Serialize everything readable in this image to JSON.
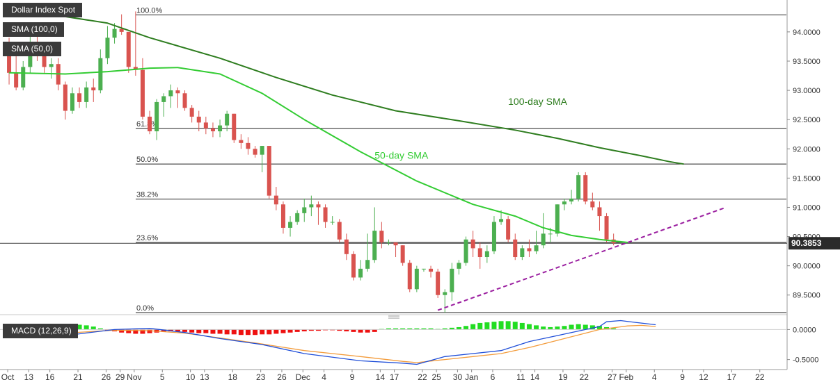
{
  "colors": {
    "bull": "#4caf50",
    "bear": "#d9534f",
    "sma100": "#2e7d1f",
    "sma50": "#33cc33",
    "trendline": "#9b1fa0",
    "macd_line": "#1f4ed8",
    "signal_line": "#f39c3c",
    "hist_pos": "#22dd22",
    "hist_neg": "#ee1111",
    "price_tag": "#2b2b2b"
  },
  "legend": {
    "title": "Dollar Index Spot",
    "sma100": "SMA (100,0)",
    "sma50": "SMA (50,0)",
    "macd": "MACD (12,26,9)"
  },
  "chart_data": [
    {
      "type": "candlestick",
      "title": "Dollar Index Spot",
      "ylim": [
        89.2,
        94.45
      ],
      "y_ticks": [
        "94.0000",
        "93.5000",
        "93.0000",
        "92.5000",
        "92.0000",
        "91.5000",
        "91.0000",
        "90.5000",
        "90.0000",
        "89.5000"
      ],
      "x_ticks": [
        "Oct",
        "13",
        "16",
        "21",
        "26",
        "29",
        "Nov",
        "5",
        "10",
        "13",
        "18",
        "23",
        "26",
        "Dec",
        "4",
        "9",
        "14",
        "17",
        "22",
        "25",
        "30",
        "Jan",
        "6",
        "11",
        "14",
        "19",
        "22",
        "27",
        "Feb",
        "4",
        "9",
        "12",
        "17",
        "22"
      ],
      "candles": [
        [
          93.8,
          93.9,
          93.1,
          93.3
        ],
        [
          93.3,
          93.6,
          93.0,
          93.05
        ],
        [
          93.05,
          93.5,
          93.0,
          93.4
        ],
        [
          93.4,
          94.0,
          93.3,
          93.7
        ],
        [
          93.7,
          93.95,
          93.5,
          93.6
        ],
        [
          93.6,
          93.75,
          93.3,
          93.4
        ],
        [
          93.4,
          93.55,
          93.2,
          93.45
        ],
        [
          93.45,
          93.55,
          93.0,
          93.1
        ],
        [
          93.1,
          93.15,
          92.5,
          92.65
        ],
        [
          92.65,
          93.05,
          92.6,
          92.95
        ],
        [
          92.95,
          93.05,
          92.7,
          92.8
        ],
        [
          92.8,
          93.15,
          92.7,
          93.05
        ],
        [
          93.05,
          93.2,
          92.8,
          93.0
        ],
        [
          93.0,
          93.7,
          92.95,
          93.55
        ],
        [
          93.55,
          94.1,
          93.45,
          93.9
        ],
        [
          93.9,
          94.15,
          93.8,
          94.05
        ],
        [
          94.05,
          94.3,
          93.95,
          94.0
        ],
        [
          94.0,
          94.0,
          93.3,
          93.4
        ],
        [
          93.4,
          94.35,
          93.25,
          93.35
        ],
        [
          93.35,
          93.55,
          92.5,
          92.55
        ],
        [
          92.55,
          92.65,
          92.25,
          92.3
        ],
        [
          92.3,
          92.85,
          92.15,
          92.8
        ],
        [
          92.8,
          92.95,
          92.55,
          92.9
        ],
        [
          92.9,
          93.1,
          92.7,
          93.0
        ],
        [
          93.0,
          93.05,
          92.7,
          92.95
        ],
        [
          92.95,
          93.0,
          92.65,
          92.7
        ],
        [
          92.7,
          92.75,
          92.45,
          92.55
        ],
        [
          92.55,
          92.65,
          92.3,
          92.45
        ],
        [
          92.45,
          92.55,
          92.25,
          92.35
        ],
        [
          92.35,
          92.45,
          92.2,
          92.3
        ],
        [
          92.3,
          92.5,
          92.2,
          92.4
        ],
        [
          92.4,
          92.65,
          92.3,
          92.6
        ],
        [
          92.6,
          92.6,
          92.1,
          92.15
        ],
        [
          92.15,
          92.25,
          92.0,
          92.1
        ],
        [
          92.1,
          92.2,
          91.9,
          92.0
        ],
        [
          92.0,
          92.05,
          91.85,
          91.9
        ],
        [
          91.9,
          92.05,
          91.6,
          92.05
        ],
        [
          92.05,
          92.05,
          91.15,
          91.2
        ],
        [
          91.2,
          91.35,
          90.95,
          91.05
        ],
        [
          91.05,
          91.1,
          90.55,
          90.65
        ],
        [
          90.65,
          90.85,
          90.5,
          90.75
        ],
        [
          90.75,
          90.95,
          90.7,
          90.9
        ],
        [
          90.9,
          91.15,
          90.75,
          91.0
        ],
        [
          91.0,
          91.2,
          90.85,
          91.05
        ],
        [
          91.05,
          91.1,
          90.7,
          91.0
        ],
        [
          91.0,
          91.05,
          90.65,
          90.75
        ],
        [
          90.75,
          90.85,
          90.7,
          90.75
        ],
        [
          90.75,
          90.8,
          90.4,
          90.45
        ],
        [
          90.45,
          90.55,
          90.1,
          90.2
        ],
        [
          90.2,
          90.25,
          89.75,
          89.8
        ],
        [
          89.8,
          90.1,
          89.75,
          89.95
        ],
        [
          89.95,
          90.55,
          89.9,
          90.1
        ],
        [
          90.1,
          91.0,
          90.05,
          90.6
        ],
        [
          90.6,
          90.75,
          90.3,
          90.4
        ],
        [
          90.4,
          90.45,
          90.35,
          90.4
        ],
        [
          90.4,
          90.4,
          90.15,
          90.35
        ],
        [
          90.35,
          90.35,
          90.0,
          90.05
        ],
        [
          90.05,
          90.1,
          89.55,
          89.6
        ],
        [
          89.6,
          90.0,
          89.55,
          89.95
        ],
        [
          89.95,
          89.95,
          89.9,
          89.95
        ],
        [
          89.95,
          90.0,
          89.8,
          89.9
        ],
        [
          89.9,
          89.95,
          89.45,
          89.5
        ],
        [
          89.5,
          89.6,
          89.2,
          89.55
        ],
        [
          89.55,
          90.05,
          89.4,
          89.95
        ],
        [
          89.95,
          90.1,
          89.85,
          90.05
        ],
        [
          90.05,
          90.5,
          90.0,
          90.45
        ],
        [
          90.45,
          90.6,
          90.15,
          90.3
        ],
        [
          90.3,
          90.4,
          89.95,
          90.15
        ],
        [
          90.15,
          90.35,
          90.05,
          90.25
        ],
        [
          90.25,
          90.85,
          90.2,
          90.75
        ],
        [
          90.75,
          90.95,
          90.7,
          90.8
        ],
        [
          90.8,
          90.85,
          90.4,
          90.45
        ],
        [
          90.45,
          90.55,
          90.1,
          90.15
        ],
        [
          90.15,
          90.35,
          90.1,
          90.3
        ],
        [
          90.3,
          90.45,
          90.15,
          90.25
        ],
        [
          90.25,
          90.6,
          90.2,
          90.35
        ],
        [
          90.35,
          90.9,
          90.3,
          90.55
        ],
        [
          90.55,
          90.65,
          90.4,
          90.55
        ],
        [
          90.55,
          91.05,
          90.5,
          91.05
        ],
        [
          91.05,
          91.15,
          90.95,
          91.1
        ],
        [
          91.1,
          91.3,
          91.05,
          91.15
        ],
        [
          91.15,
          91.6,
          91.1,
          91.55
        ],
        [
          91.55,
          91.6,
          91.05,
          91.1
        ],
        [
          91.1,
          91.25,
          90.95,
          91.0
        ],
        [
          91.0,
          91.1,
          90.6,
          90.85
        ],
        [
          90.85,
          90.9,
          90.4,
          90.45
        ],
        [
          90.45,
          90.55,
          90.35,
          90.39
        ]
      ],
      "sma100": [
        [
          0,
          94.41
        ],
        [
          14,
          94.15
        ],
        [
          20,
          93.9
        ],
        [
          30,
          93.55
        ],
        [
          38,
          93.22
        ],
        [
          46,
          92.92
        ],
        [
          55,
          92.65
        ],
        [
          64,
          92.48
        ],
        [
          72,
          92.32
        ],
        [
          78,
          92.18
        ],
        [
          84,
          92.02
        ],
        [
          90,
          91.88
        ],
        [
          94,
          91.78
        ],
        [
          96,
          91.74
        ]
      ],
      "sma50": [
        [
          0,
          93.3
        ],
        [
          8,
          93.28
        ],
        [
          14,
          93.32
        ],
        [
          20,
          93.38
        ],
        [
          24,
          93.39
        ],
        [
          30,
          93.28
        ],
        [
          36,
          92.95
        ],
        [
          42,
          92.5
        ],
        [
          50,
          91.95
        ],
        [
          58,
          91.45
        ],
        [
          66,
          91.05
        ],
        [
          72,
          90.85
        ],
        [
          76,
          90.65
        ],
        [
          80,
          90.52
        ],
        [
          84,
          90.45
        ],
        [
          88,
          90.4
        ]
      ],
      "trendline": [
        [
          61,
          89.24
        ],
        [
          102,
          91.0
        ]
      ],
      "fib_levels": [
        {
          "label": "100.0%",
          "value": 94.29
        },
        {
          "label": "61.8%",
          "value": 92.35
        },
        {
          "label": "50.0%",
          "value": 91.74
        },
        {
          "label": "38.2%",
          "value": 91.14
        },
        {
          "label": "23.6%",
          "value": 90.4
        },
        {
          "label": "0.0%",
          "value": 89.2
        }
      ],
      "annotations": [
        {
          "text": "100-day SMA",
          "x": 71,
          "y": 92.75
        },
        {
          "text": "50-day SMA",
          "x": 52,
          "y": 91.83
        }
      ],
      "last_price": "90.3853",
      "last_value": 90.3853
    },
    {
      "type": "macd",
      "title": "MACD (12,26,9)",
      "ylim": [
        -0.62,
        0.19
      ],
      "y_ticks": [
        "0.0000",
        "-0.5000"
      ],
      "histogram": [
        -0.05,
        -0.06,
        -0.07,
        -0.07,
        -0.06,
        -0.05,
        -0.03,
        0.0,
        0.04,
        0.07,
        0.08,
        0.07,
        0.05,
        0.02,
        -0.01,
        -0.03,
        -0.05,
        -0.06,
        -0.07,
        -0.07,
        -0.06,
        -0.05,
        -0.04,
        -0.03,
        -0.03,
        -0.04,
        -0.05,
        -0.06,
        -0.06,
        -0.07,
        -0.07,
        -0.08,
        -0.08,
        -0.09,
        -0.09,
        -0.09,
        -0.08,
        -0.08,
        -0.07,
        -0.06,
        -0.05,
        -0.04,
        -0.03,
        -0.02,
        -0.02,
        -0.01,
        -0.01,
        -0.02,
        -0.03,
        -0.04,
        -0.05,
        -0.05,
        -0.04,
        0.01,
        0.02,
        0.02,
        0.02,
        0.02,
        0.02,
        0.02,
        0.02,
        0.01,
        0.02,
        0.03,
        0.04,
        0.06,
        0.09,
        0.11,
        0.12,
        0.13,
        0.14,
        0.14,
        0.13,
        0.11,
        0.09,
        0.07,
        0.05,
        0.04,
        0.05,
        0.06,
        0.08,
        0.09,
        0.08,
        0.07,
        0.06,
        0.04,
        0.02
      ],
      "macd_line": [
        [
          0,
          -0.03
        ],
        [
          8,
          -0.1
        ],
        [
          15,
          0.0
        ],
        [
          20,
          0.02
        ],
        [
          25,
          -0.05
        ],
        [
          30,
          -0.15
        ],
        [
          36,
          -0.25
        ],
        [
          42,
          -0.4
        ],
        [
          50,
          -0.52
        ],
        [
          56,
          -0.56
        ],
        [
          58,
          -0.58
        ],
        [
          62,
          -0.45
        ],
        [
          66,
          -0.4
        ],
        [
          70,
          -0.35
        ],
        [
          74,
          -0.2
        ],
        [
          78,
          -0.1
        ],
        [
          82,
          0.0
        ],
        [
          84,
          0.05
        ],
        [
          85,
          0.13
        ],
        [
          87,
          0.15
        ],
        [
          89,
          0.12
        ],
        [
          92,
          0.08
        ]
      ],
      "signal_line": [
        [
          0,
          -0.02
        ],
        [
          8,
          -0.06
        ],
        [
          15,
          -0.01
        ],
        [
          20,
          -0.02
        ],
        [
          25,
          -0.06
        ],
        [
          30,
          -0.14
        ],
        [
          36,
          -0.24
        ],
        [
          42,
          -0.35
        ],
        [
          50,
          -0.45
        ],
        [
          56,
          -0.53
        ],
        [
          58,
          -0.55
        ],
        [
          62,
          -0.5
        ],
        [
          66,
          -0.45
        ],
        [
          70,
          -0.4
        ],
        [
          74,
          -0.3
        ],
        [
          78,
          -0.18
        ],
        [
          82,
          -0.06
        ],
        [
          84,
          0.0
        ],
        [
          86,
          0.03
        ],
        [
          88,
          0.06
        ],
        [
          90,
          0.07
        ],
        [
          92,
          0.05
        ]
      ]
    }
  ]
}
